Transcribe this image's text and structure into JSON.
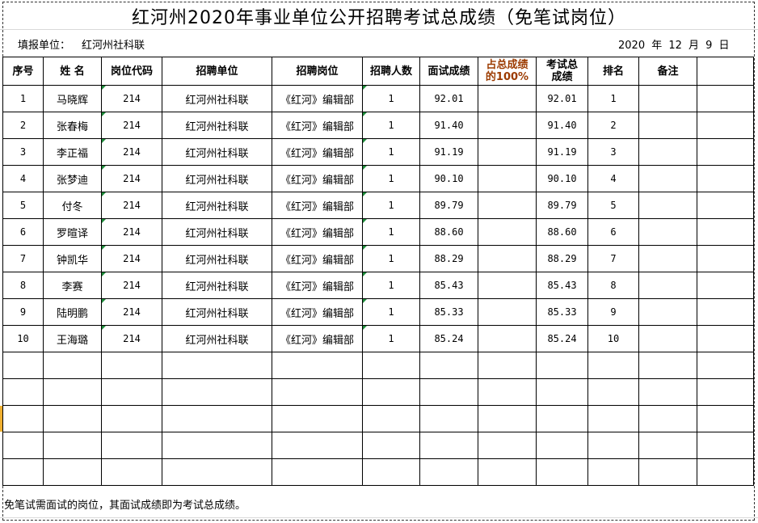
{
  "title": "红河州2020年事业单位公开招聘考试总成绩（免笔试岗位）",
  "reporting_unit_label": "填报单位：",
  "reporting_unit": "红河州社科联",
  "date": "2020 年 12 月 9 日",
  "headers": [
    "序号",
    "姓 名",
    "岗位代码",
    "招聘单位",
    "招聘岗位",
    "招聘人数",
    "面试成绩",
    "占总成绩的100%",
    "考试总成绩",
    "排名",
    "备注",
    ""
  ],
  "header_highlight_color": "#9c3b00",
  "rows": [
    [
      "1",
      "马晓辉",
      "214",
      "红河州社科联",
      "《红河》编辑部",
      "1",
      "92.01",
      "",
      "92.01",
      "1",
      "",
      ""
    ],
    [
      "2",
      "张春梅",
      "214",
      "红河州社科联",
      "《红河》编辑部",
      "1",
      "91.40",
      "",
      "91.40",
      "2",
      "",
      ""
    ],
    [
      "3",
      "李正福",
      "214",
      "红河州社科联",
      "《红河》编辑部",
      "1",
      "91.19",
      "",
      "91.19",
      "3",
      "",
      ""
    ],
    [
      "4",
      "张梦迪",
      "214",
      "红河州社科联",
      "《红河》编辑部",
      "1",
      "90.10",
      "",
      "90.10",
      "4",
      "",
      ""
    ],
    [
      "5",
      "付冬",
      "214",
      "红河州社科联",
      "《红河》编辑部",
      "1",
      "89.79",
      "",
      "89.79",
      "5",
      "",
      ""
    ],
    [
      "6",
      "罗暄译",
      "214",
      "红河州社科联",
      "《红河》编辑部",
      "1",
      "88.60",
      "",
      "88.60",
      "6",
      "",
      ""
    ],
    [
      "7",
      "钟凯华",
      "214",
      "红河州社科联",
      "《红河》编辑部",
      "1",
      "88.29",
      "",
      "88.29",
      "7",
      "",
      ""
    ],
    [
      "8",
      "李赛",
      "214",
      "红河州社科联",
      "《红河》编辑部",
      "1",
      "85.43",
      "",
      "85.43",
      "8",
      "",
      ""
    ],
    [
      "9",
      "陆明鹏",
      "214",
      "红河州社科联",
      "《红河》编辑部",
      "1",
      "85.33",
      "",
      "85.33",
      "9",
      "",
      ""
    ],
    [
      "10",
      "王海璐",
      "214",
      "红河州社科联",
      "《红河》编辑部",
      "1",
      "85.24",
      "",
      "85.24",
      "10",
      "",
      ""
    ]
  ],
  "empty_rows": 5,
  "footer_note": "免笔试需面试的岗位，其面试成绩即为考试总成绩。"
}
